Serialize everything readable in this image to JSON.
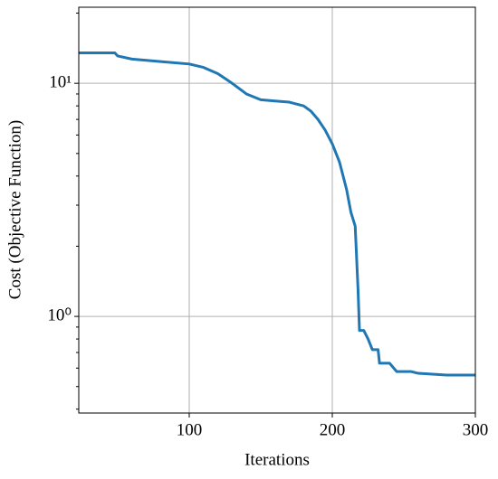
{
  "chart_data": {
    "type": "line",
    "xlabel": "Iterations",
    "ylabel": "Cost (Objective Function)",
    "x": [
      23,
      48,
      50,
      60,
      80,
      100,
      110,
      120,
      130,
      140,
      150,
      160,
      170,
      180,
      185,
      190,
      195,
      200,
      205,
      210,
      213,
      216,
      218,
      219,
      222,
      225,
      228,
      232,
      233,
      240,
      245,
      255,
      260,
      280,
      300
    ],
    "series": [
      {
        "color": "#1f77b4",
        "values": [
          13.5,
          13.5,
          13.1,
          12.7,
          12.4,
          12.1,
          11.7,
          11.0,
          10.0,
          9.0,
          8.5,
          8.4,
          8.3,
          8.0,
          7.6,
          7.0,
          6.3,
          5.5,
          4.6,
          3.5,
          2.8,
          2.44,
          1.3,
          0.87,
          0.87,
          0.8,
          0.72,
          0.72,
          0.63,
          0.63,
          0.58,
          0.58,
          0.57,
          0.56,
          0.56
        ]
      }
    ],
    "xlim": [
      22.8,
      300
    ],
    "xticks": [
      100,
      200,
      300
    ],
    "ylim": [
      0.385,
      21.2
    ],
    "yscale": "log",
    "yticks": [
      {
        "value": 1,
        "label": "10⁰"
      },
      {
        "value": 10,
        "label": "10¹"
      }
    ],
    "yminorticks": [
      0.4,
      0.5,
      0.6,
      0.7,
      0.8,
      0.9,
      2,
      3,
      4,
      5,
      6,
      7,
      8,
      9,
      20
    ],
    "grid": true
  }
}
